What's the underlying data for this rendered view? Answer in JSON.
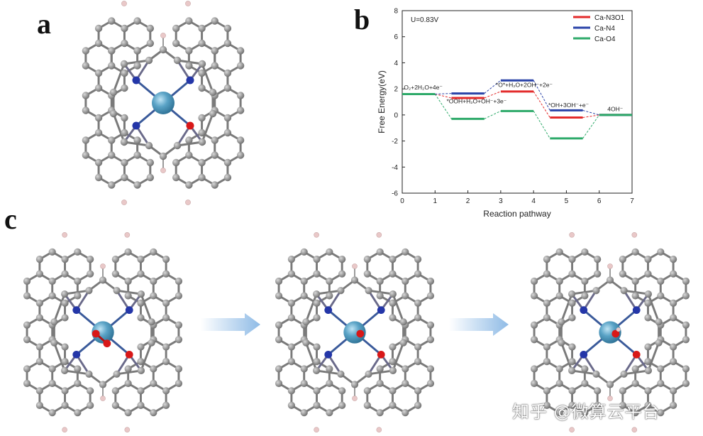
{
  "panels": {
    "a": "a",
    "b": "b",
    "c": "c"
  },
  "chart_data": {
    "type": "line",
    "subtype": "free-energy-step-diagram",
    "annotation_potential": "U=0.83V",
    "xlabel": "Reaction pathway",
    "ylabel": "Free Energy(eV)",
    "xlim": [
      0,
      7
    ],
    "ylim": [
      -6,
      8
    ],
    "xticks": [
      "0",
      "1",
      "2",
      "3",
      "4",
      "5",
      "6",
      "7"
    ],
    "yticks": [
      "-6",
      "-4",
      "-2",
      "0",
      "2",
      "4",
      "6",
      "8"
    ],
    "grid": false,
    "legend_position": "top-right",
    "step_spans": [
      [
        0,
        1
      ],
      [
        1.5,
        2.5
      ],
      [
        3,
        4
      ],
      [
        4.5,
        5.5
      ],
      [
        6,
        7
      ]
    ],
    "step_labels": [
      {
        "x": 0.05,
        "y": 1.95,
        "text": "O₂+2H₂O+4e⁻"
      },
      {
        "x": 1.35,
        "y": 0.9,
        "text": "*OOH+H₂O+OH⁻+3e⁻"
      },
      {
        "x": 2.85,
        "y": 2.15,
        "text": "*O*+H₂O+2OH⁻+2e⁻"
      },
      {
        "x": 4.45,
        "y": 0.6,
        "text": "*OH+3OH⁻+e⁻"
      },
      {
        "x": 6.25,
        "y": 0.3,
        "text": "4OH⁻"
      }
    ],
    "series": [
      {
        "name": "Ca-N3O1",
        "color": "#e32b2b",
        "values": [
          1.6,
          1.3,
          1.8,
          -0.2,
          0.0
        ]
      },
      {
        "name": "Ca-N4",
        "color": "#2a43a8",
        "values": [
          1.6,
          1.65,
          2.65,
          0.35,
          0.0
        ]
      },
      {
        "name": "Ca-O4",
        "color": "#2eaa6a",
        "values": [
          1.6,
          -0.3,
          0.3,
          -1.8,
          0.0
        ]
      }
    ]
  },
  "structures": {
    "colors": {
      "carbon": "#8a8a8a",
      "nitrogen": "#2436a8",
      "oxygen": "#d81818",
      "hydrogen": "#e9c8c8",
      "calcium": "#4a8fb2",
      "arrow": "#9cc2e6"
    }
  },
  "watermark": "知乎 @微算云平台"
}
